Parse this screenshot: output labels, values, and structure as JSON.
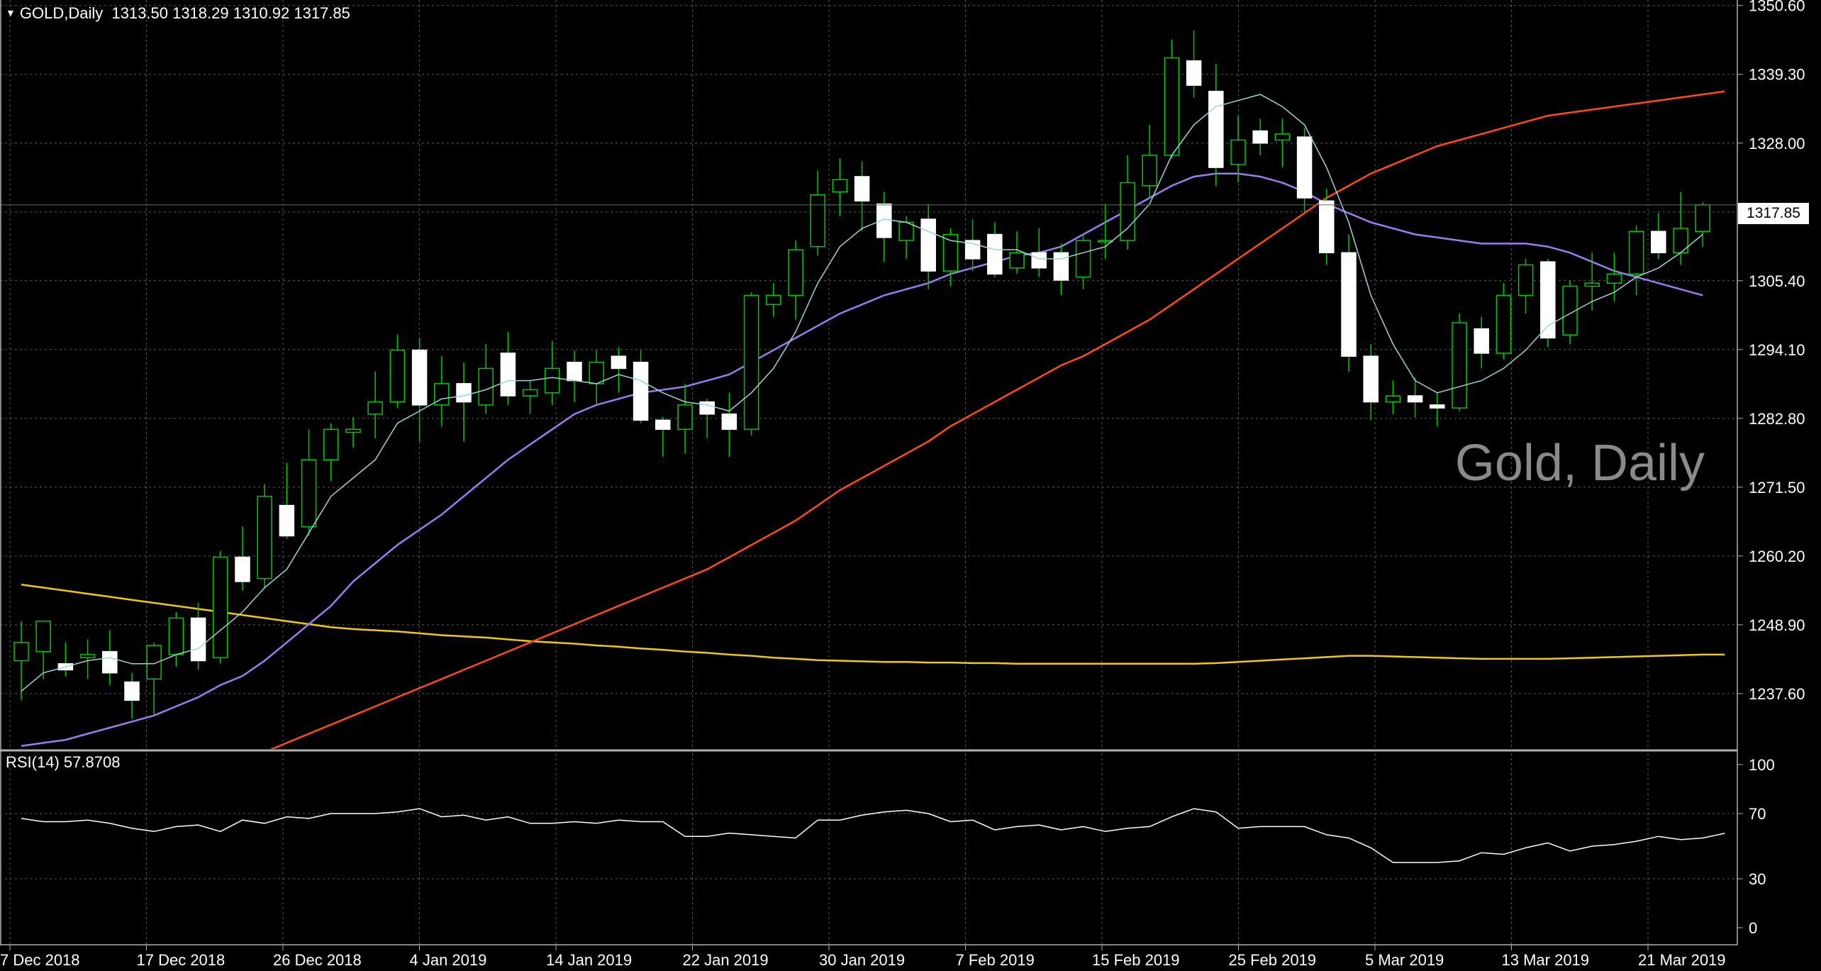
{
  "header": {
    "symbol": "GOLD,Daily",
    "ohlc": "1313.50 1318.29 1310.92 1317.85"
  },
  "watermark": "Gold, Daily",
  "rsi": {
    "label": "RSI(14) 57.8708",
    "levels": [
      100,
      70,
      30,
      0
    ],
    "values": [
      67,
      65,
      65,
      66,
      64,
      61,
      59,
      62,
      63,
      59,
      66,
      64,
      68,
      67,
      70,
      70,
      70,
      71,
      73,
      68,
      69,
      66,
      68,
      64,
      64,
      65,
      64,
      66,
      65,
      65,
      56,
      56,
      58,
      57,
      56,
      55,
      66,
      66,
      69,
      71,
      72,
      70,
      65,
      66,
      60,
      62,
      63,
      60,
      62,
      59,
      61,
      62,
      68,
      73,
      71,
      61,
      62,
      62,
      62,
      57,
      55,
      49,
      40,
      40,
      40,
      41,
      46,
      45,
      49,
      52,
      47,
      50,
      51,
      53,
      56,
      54,
      55,
      57.87
    ]
  },
  "price_tag": "1317.85",
  "colors": {
    "up_candle": "#000000",
    "down_candle": "#ffffff",
    "wick": "#00c800",
    "ma_fast": "#9ad6d6",
    "ma_mid": "#9c7cf0",
    "ma_slow": "#ff4a1a",
    "ma_long": "#f0c814",
    "grid": "#5a5a5a"
  },
  "chart_data": {
    "type": "candlestick",
    "symbol": "GOLD",
    "timeframe": "Daily",
    "ylim": [
      1228.5,
      1351.5
    ],
    "price_ticks": [
      1350.6,
      1339.3,
      1328.0,
      1316.7,
      1305.4,
      1294.1,
      1282.8,
      1271.5,
      1260.2,
      1248.9,
      1237.6
    ],
    "x_labels": [
      "7 Dec 2018",
      "17 Dec 2018",
      "26 Dec 2018",
      "4 Jan 2019",
      "14 Jan 2019",
      "22 Jan 2019",
      "30 Jan 2019",
      "7 Feb 2019",
      "15 Feb 2019",
      "25 Feb 2019",
      "5 Mar 2019",
      "13 Mar 2019",
      "21 Mar 2019"
    ],
    "candles": [
      [
        1243.0,
        1249.5,
        1236.5,
        1246.0
      ],
      [
        1244.5,
        1249.0,
        1240.0,
        1249.5
      ],
      [
        1242.5,
        1246.0,
        1240.5,
        1241.5
      ],
      [
        1243.5,
        1246.5,
        1240.0,
        1244.0
      ],
      [
        1244.5,
        1248.0,
        1239.0,
        1241.0
      ],
      [
        1239.5,
        1241.0,
        1233.5,
        1236.5
      ],
      [
        1240.0,
        1246.0,
        1234.0,
        1245.5
      ],
      [
        1244.0,
        1251.0,
        1242.0,
        1250.0
      ],
      [
        1250.0,
        1252.5,
        1241.5,
        1243.0
      ],
      [
        1243.5,
        1261.0,
        1242.5,
        1260.0
      ],
      [
        1260.0,
        1265.0,
        1254.5,
        1256.0
      ],
      [
        1256.5,
        1272.0,
        1255.0,
        1270.0
      ],
      [
        1268.5,
        1275.5,
        1263.0,
        1263.5
      ],
      [
        1265.0,
        1281.0,
        1263.5,
        1276.0
      ],
      [
        1276.0,
        1282.0,
        1272.5,
        1281.0
      ],
      [
        1280.5,
        1283.0,
        1278.0,
        1281.0
      ],
      [
        1283.5,
        1290.5,
        1279.5,
        1285.5
      ],
      [
        1285.5,
        1296.5,
        1284.5,
        1294.0
      ],
      [
        1294.0,
        1296.0,
        1279.0,
        1285.0
      ],
      [
        1285.0,
        1293.0,
        1281.5,
        1288.5
      ],
      [
        1288.5,
        1292.0,
        1279.0,
        1285.5
      ],
      [
        1285.0,
        1295.0,
        1283.5,
        1291.0
      ],
      [
        1293.5,
        1297.0,
        1285.0,
        1286.5
      ],
      [
        1286.5,
        1289.0,
        1283.5,
        1287.5
      ],
      [
        1287.0,
        1295.5,
        1285.0,
        1291.0
      ],
      [
        1292.0,
        1294.0,
        1285.5,
        1289.0
      ],
      [
        1288.5,
        1294.0,
        1285.0,
        1292.0
      ],
      [
        1293.0,
        1294.5,
        1287.0,
        1291.0
      ],
      [
        1292.0,
        1294.0,
        1282.0,
        1282.5
      ],
      [
        1282.5,
        1283.0,
        1276.5,
        1281.0
      ],
      [
        1281.0,
        1288.5,
        1277.0,
        1285.0
      ],
      [
        1285.5,
        1286.0,
        1279.5,
        1283.5
      ],
      [
        1283.5,
        1287.0,
        1276.5,
        1281.0
      ],
      [
        1281.0,
        1303.5,
        1280.0,
        1303.0
      ],
      [
        1301.5,
        1305.0,
        1299.5,
        1303.0
      ],
      [
        1303.0,
        1312.0,
        1299.0,
        1310.5
      ],
      [
        1311.0,
        1323.5,
        1309.5,
        1319.5
      ],
      [
        1320.0,
        1325.5,
        1316.0,
        1322.0
      ],
      [
        1322.5,
        1325.0,
        1313.5,
        1318.5
      ],
      [
        1318.0,
        1320.0,
        1308.5,
        1312.5
      ],
      [
        1312.0,
        1316.0,
        1309.0,
        1315.0
      ],
      [
        1315.5,
        1318.0,
        1304.0,
        1307.0
      ],
      [
        1307.0,
        1314.0,
        1304.5,
        1313.0
      ],
      [
        1312.0,
        1315.5,
        1307.0,
        1309.0
      ],
      [
        1313.0,
        1315.0,
        1306.0,
        1306.5
      ],
      [
        1307.5,
        1313.5,
        1306.5,
        1310.0
      ],
      [
        1310.0,
        1314.0,
        1306.0,
        1307.5
      ],
      [
        1310.0,
        1311.5,
        1303.0,
        1305.5
      ],
      [
        1306.0,
        1313.0,
        1304.0,
        1312.0
      ],
      [
        1312.0,
        1318.0,
        1309.0,
        1312.0
      ],
      [
        1312.0,
        1326.0,
        1310.5,
        1321.5
      ],
      [
        1321.0,
        1331.0,
        1319.0,
        1326.0
      ],
      [
        1326.0,
        1345.0,
        1325.5,
        1342.0
      ],
      [
        1341.5,
        1346.5,
        1335.5,
        1337.5
      ],
      [
        1336.5,
        1341.0,
        1321.0,
        1324.0
      ],
      [
        1324.5,
        1332.5,
        1321.5,
        1328.5
      ],
      [
        1330.0,
        1332.0,
        1326.0,
        1328.0
      ],
      [
        1328.5,
        1332.0,
        1324.0,
        1329.5
      ],
      [
        1329.0,
        1330.5,
        1316.5,
        1319.0
      ],
      [
        1318.5,
        1320.5,
        1308.0,
        1310.0
      ],
      [
        1310.0,
        1313.0,
        1290.5,
        1293.0
      ],
      [
        1293.0,
        1295.0,
        1282.5,
        1285.5
      ],
      [
        1285.5,
        1289.0,
        1283.5,
        1286.5
      ],
      [
        1286.5,
        1289.5,
        1283.0,
        1285.5
      ],
      [
        1285.0,
        1287.0,
        1281.5,
        1284.5
      ],
      [
        1284.5,
        1300.0,
        1284.0,
        1298.5
      ],
      [
        1297.5,
        1299.5,
        1291.0,
        1293.5
      ],
      [
        1293.5,
        1305.0,
        1292.5,
        1303.0
      ],
      [
        1303.0,
        1309.0,
        1300.0,
        1308.0
      ],
      [
        1308.5,
        1309.0,
        1294.5,
        1296.0
      ],
      [
        1296.5,
        1305.5,
        1295.0,
        1304.5
      ],
      [
        1304.5,
        1310.0,
        1300.5,
        1305.0
      ],
      [
        1305.0,
        1310.0,
        1302.0,
        1306.5
      ],
      [
        1306.5,
        1314.5,
        1303.0,
        1313.5
      ],
      [
        1313.5,
        1316.5,
        1309.0,
        1310.0
      ],
      [
        1310.0,
        1320.0,
        1308.0,
        1314.0
      ],
      [
        1313.5,
        1318.29,
        1310.92,
        1317.85
      ]
    ],
    "ma_fast": [
      1238,
      1241,
      1242,
      1243,
      1243.5,
      1242.5,
      1242.5,
      1244,
      1245,
      1248,
      1251,
      1255,
      1258,
      1264,
      1270,
      1273,
      1276,
      1282,
      1284,
      1286,
      1286.5,
      1287.5,
      1289,
      1289,
      1289.5,
      1289,
      1288.5,
      1290,
      1289,
      1287,
      1285.5,
      1285,
      1284,
      1287,
      1291,
      1297,
      1305,
      1311,
      1314,
      1315.5,
      1315,
      1313.5,
      1312,
      1311.5,
      1310.5,
      1310.5,
      1309,
      1309,
      1310,
      1311,
      1314,
      1318,
      1326,
      1331,
      1334,
      1335,
      1336,
      1334,
      1331,
      1324,
      1315,
      1303,
      1295,
      1289,
      1287,
      1288,
      1289,
      1291,
      1294,
      1298,
      1300,
      1302,
      1303.5,
      1306,
      1307.5,
      1310,
      1313
    ],
    "ma_mid": [
      1229,
      1229.5,
      1230,
      1231,
      1232,
      1233,
      1234,
      1235.5,
      1237,
      1239,
      1240.5,
      1243,
      1246,
      1249,
      1252,
      1256,
      1259,
      1262,
      1264.5,
      1267,
      1270,
      1273,
      1276,
      1278.5,
      1281,
      1283.5,
      1285,
      1286,
      1287,
      1287.5,
      1288,
      1289,
      1290,
      1292,
      1294,
      1296,
      1298,
      1300,
      1301.5,
      1303,
      1304,
      1305,
      1306.5,
      1307.5,
      1308.5,
      1309.5,
      1310,
      1311,
      1313,
      1315,
      1317,
      1319,
      1321,
      1322.5,
      1323,
      1323,
      1322.5,
      1321.5,
      1320,
      1318,
      1316.5,
      1315,
      1314,
      1313,
      1312.5,
      1312,
      1311.5,
      1311.5,
      1311.5,
      1311,
      1310,
      1308.5,
      1307,
      1306,
      1305,
      1304,
      1303
    ],
    "ma_slow": [
      1221,
      1221.5,
      1222,
      1222.5,
      1223,
      1223.5,
      1224,
      1224.5,
      1225,
      1226,
      1227,
      1228,
      1229.5,
      1231,
      1232.5,
      1234,
      1235.5,
      1237,
      1238.5,
      1240,
      1241.5,
      1243,
      1244.5,
      1246,
      1247.5,
      1249,
      1250.5,
      1252,
      1253.5,
      1255,
      1256.5,
      1258,
      1260,
      1262,
      1264,
      1266,
      1268.5,
      1271,
      1273,
      1275,
      1277,
      1279,
      1281.5,
      1283.5,
      1285.5,
      1287.5,
      1289.5,
      1291.5,
      1293,
      1295,
      1297,
      1299,
      1301.5,
      1304,
      1306.5,
      1309,
      1311.5,
      1314,
      1316.5,
      1319,
      1321,
      1323,
      1324.5,
      1326,
      1327.5,
      1328.5,
      1329.5,
      1330.5,
      1331.5,
      1332.5,
      1333,
      1333.5,
      1334,
      1334.5,
      1335,
      1335.5,
      1336,
      1336.5
    ],
    "ma_long": [
      1255.5,
      1255,
      1254.5,
      1254,
      1253.5,
      1253,
      1252.5,
      1252,
      1251.5,
      1251,
      1250.5,
      1250,
      1249.5,
      1249,
      1248.5,
      1248.2,
      1248,
      1247.8,
      1247.5,
      1247.2,
      1247,
      1246.8,
      1246.5,
      1246.2,
      1246,
      1245.8,
      1245.5,
      1245.3,
      1245,
      1244.8,
      1244.5,
      1244.3,
      1244,
      1243.8,
      1243.5,
      1243.3,
      1243.1,
      1243,
      1242.9,
      1242.8,
      1242.8,
      1242.7,
      1242.7,
      1242.6,
      1242.6,
      1242.5,
      1242.5,
      1242.5,
      1242.5,
      1242.5,
      1242.5,
      1242.5,
      1242.5,
      1242.5,
      1242.6,
      1242.8,
      1243,
      1243.2,
      1243.4,
      1243.6,
      1243.8,
      1243.8,
      1243.7,
      1243.6,
      1243.5,
      1243.4,
      1243.3,
      1243.3,
      1243.3,
      1243.3,
      1243.4,
      1243.5,
      1243.6,
      1243.7,
      1243.8,
      1243.9,
      1244,
      1244
    ]
  }
}
